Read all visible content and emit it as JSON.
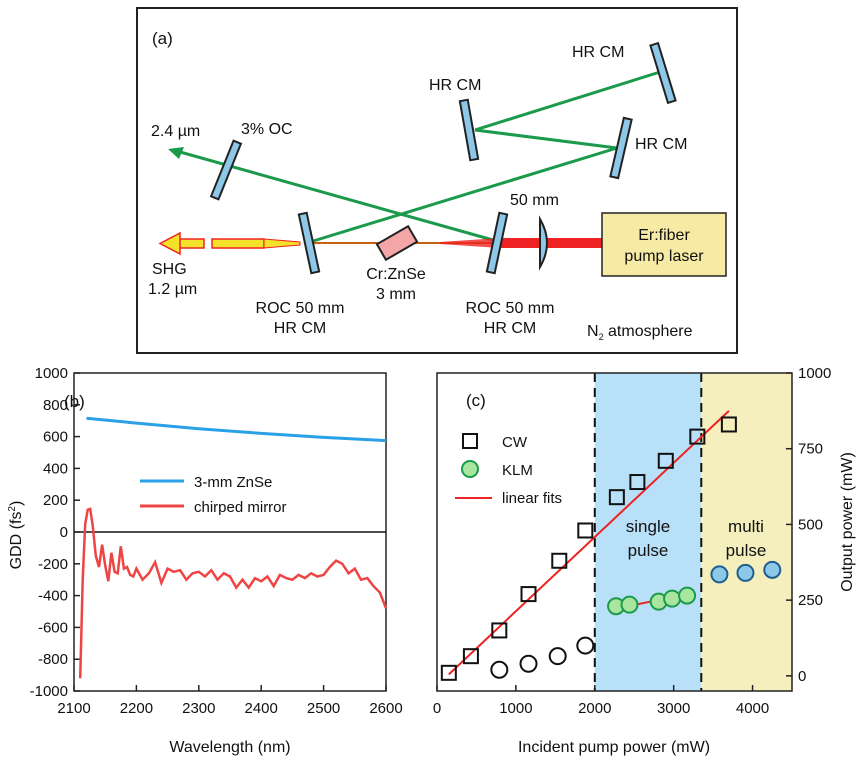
{
  "panel_a": {
    "label": "(a)",
    "hr_cm_top": "HR CM",
    "hr_cm_mid": "HR CM",
    "hr_cm_right": "HR CM",
    "output_wavelength": "2.4 µm",
    "output_coupler": "3% OC",
    "lens_focal": "50 mm",
    "pump_line1": "Er:fiber",
    "pump_line2": "pump laser",
    "shg_line1": "SHG",
    "shg_line2": "1.2 µm",
    "crystal_line1": "Cr:ZnSe",
    "crystal_line2": "3 mm",
    "roc_left_line1": "ROC 50 mm",
    "roc_left_line2": "HR CM",
    "roc_right_line1": "ROC 50 mm",
    "roc_right_line2": "HR CM",
    "atmosphere_n": "N",
    "atmosphere_sub": "2",
    "atmosphere_rest": " atmosphere"
  },
  "colors": {
    "green_beam": "#1a9a4a",
    "mirror_fill": "#8ec8e8",
    "pump_red": "#ee2222",
    "pump_box": "#f7eaa5",
    "crystal_pink": "#f4a6a6",
    "zno_blue": "#2aa0e6",
    "chirp_red": "#ee4444",
    "single_pulse_bg": "#b8e0f8",
    "multi_pulse_bg": "#f4efbd",
    "klm_green": "#a8e6a0",
    "multi_blue": "#8ec8e8"
  },
  "chart_data": [
    {
      "type": "line",
      "panel_label": "(b)",
      "xlabel": "Wavelength (nm)",
      "ylabel_main": "GDD (fs",
      "ylabel_sup": "2",
      "ylabel_end": ")",
      "xlim": [
        2100,
        2600
      ],
      "ylim": [
        -1000,
        1000
      ],
      "xticks": [
        2100,
        2200,
        2300,
        2400,
        2500,
        2600
      ],
      "yticks": [
        -1000,
        -800,
        -600,
        -400,
        -200,
        0,
        200,
        400,
        600,
        800,
        1000
      ],
      "series": [
        {
          "name": "3-mm ZnSe",
          "x": [
            2120,
            2200,
            2300,
            2400,
            2500,
            2600
          ],
          "y": [
            715,
            685,
            650,
            620,
            595,
            575
          ]
        },
        {
          "name": "chirped mirror",
          "x": [
            2110,
            2114,
            2118,
            2122,
            2126,
            2130,
            2135,
            2140,
            2145,
            2150,
            2155,
            2160,
            2165,
            2170,
            2175,
            2180,
            2185,
            2190,
            2195,
            2200,
            2210,
            2220,
            2230,
            2240,
            2250,
            2260,
            2270,
            2280,
            2290,
            2300,
            2310,
            2320,
            2330,
            2340,
            2350,
            2360,
            2370,
            2380,
            2390,
            2400,
            2410,
            2420,
            2430,
            2440,
            2450,
            2460,
            2470,
            2480,
            2490,
            2500,
            2510,
            2520,
            2530,
            2540,
            2550,
            2560,
            2570,
            2580,
            2590,
            2600
          ],
          "y": [
            -920,
            -300,
            50,
            140,
            145,
            40,
            -150,
            -220,
            -80,
            -210,
            -310,
            -130,
            -250,
            -260,
            -90,
            -230,
            -220,
            -270,
            -280,
            -230,
            -300,
            -260,
            -190,
            -320,
            -230,
            -250,
            -240,
            -300,
            -260,
            -250,
            -280,
            -240,
            -300,
            -260,
            -280,
            -350,
            -300,
            -350,
            -290,
            -310,
            -280,
            -340,
            -270,
            -290,
            -300,
            -270,
            -290,
            -260,
            -280,
            -270,
            -220,
            -180,
            -200,
            -260,
            -230,
            -300,
            -290,
            -340,
            -380,
            -480
          ]
        }
      ]
    },
    {
      "type": "scatter",
      "panel_label": "(c)",
      "xlabel": "Incident pump power (mW)",
      "ylabel_right": "Output power (mW)",
      "xlim": [
        0,
        4500
      ],
      "ylim_right": [
        -50,
        1000
      ],
      "xticks": [
        0,
        1000,
        2000,
        3000,
        4000
      ],
      "yticks_right": [
        0,
        250,
        500,
        750,
        1000
      ],
      "regions": [
        {
          "label_line1": "single",
          "label_line2": "pulse",
          "x_range": [
            2000,
            3350
          ]
        },
        {
          "label_line1": "multi",
          "label_line2": "pulse",
          "x_range": [
            3350,
            4500
          ]
        }
      ],
      "series": [
        {
          "name": "CW",
          "marker": "open-square",
          "x": [
            150,
            430,
            790,
            1160,
            1550,
            1880,
            2280,
            2540,
            2900,
            3300,
            3700
          ],
          "y": [
            10,
            65,
            150,
            270,
            380,
            480,
            590,
            640,
            710,
            790,
            830
          ]
        },
        {
          "name": "KLM",
          "marker": "green-circle",
          "x": [
            2270,
            2440,
            2810,
            2980,
            3170
          ],
          "y": [
            230,
            235,
            245,
            255,
            265
          ]
        },
        {
          "name": "",
          "marker": "blue-circle",
          "x": [
            3580,
            3910,
            4250
          ],
          "y": [
            335,
            340,
            350
          ]
        },
        {
          "name": "",
          "marker": "open-circle",
          "x": [
            790,
            1160,
            1530,
            1880
          ],
          "y": [
            20,
            40,
            65,
            100
          ]
        }
      ],
      "fits": [
        {
          "name": "linear fits",
          "x": [
            150,
            3700
          ],
          "y": [
            5,
            875
          ]
        },
        {
          "name": "",
          "x": [
            2270,
            3180
          ],
          "y": [
            222,
            270
          ]
        }
      ],
      "legend": [
        "CW",
        "KLM",
        "linear fits"
      ]
    }
  ]
}
